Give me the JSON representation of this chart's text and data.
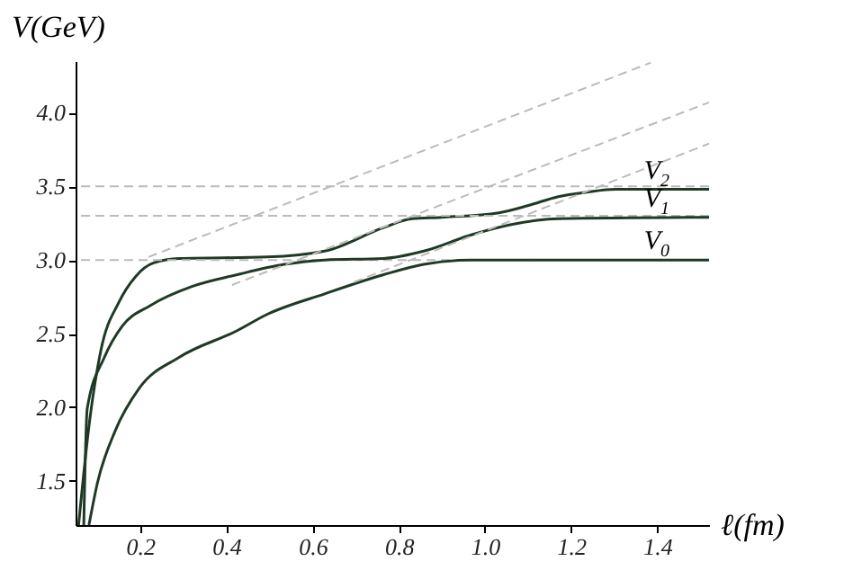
{
  "chart_data": {
    "type": "line",
    "xlabel": "ℓ(fm)",
    "ylabel": "V(GeV)",
    "xlim": [
      0.05,
      1.52
    ],
    "ylim": [
      1.2,
      4.35
    ],
    "xticks": [
      0.2,
      0.4,
      0.6,
      0.8,
      {
        "value": 1,
        "label": "1.0"
      },
      1.2,
      1.4
    ],
    "yticks": [
      1.5,
      {
        "value": 2,
        "label": "2.0"
      },
      2.5,
      {
        "value": 3,
        "label": "3.0"
      },
      3.5,
      {
        "value": 4,
        "label": "4.0"
      }
    ],
    "grid": false,
    "line_style": "solid",
    "series": [
      {
        "name": "V$_{2}$",
        "color": "#1f3a24",
        "x": [
          0.057,
          0.081,
          0.109,
          0.15,
          0.19,
          0.231,
          0.291,
          0.494,
          0.628,
          0.765,
          0.83,
          0.899,
          1.032,
          1.101,
          1.17,
          1.235,
          1.304,
          1.52
        ],
        "values": [
          1.2,
          1.87,
          2.39,
          2.71,
          2.89,
          2.98,
          3.01,
          3.02,
          3.06,
          3.22,
          3.28,
          3.29,
          3.32,
          3.37,
          3.43,
          3.46,
          3.48,
          3.48
        ]
      },
      {
        "name": "V$_{1}$",
        "color": "#1f3a24",
        "x": [
          0.069,
          0.077,
          0.117,
          0.158,
          0.223,
          0.32,
          0.425,
          0.534,
          0.628,
          0.765,
          0.858,
          0.968,
          1.061,
          1.17,
          1.52
        ],
        "values": [
          1.2,
          1.99,
          2.34,
          2.55,
          2.69,
          2.82,
          2.9,
          2.97,
          3.0,
          3.01,
          3.06,
          3.17,
          3.24,
          3.28,
          3.29
        ]
      },
      {
        "name": "V$_{0}$",
        "color": "#1f3a24",
        "x": [
          0.081,
          0.101,
          0.142,
          0.198,
          0.291,
          0.425,
          0.494,
          0.628,
          0.765,
          0.858,
          0.968,
          1.52
        ],
        "values": [
          1.2,
          1.49,
          1.84,
          2.13,
          2.34,
          2.52,
          2.63,
          2.77,
          2.9,
          2.97,
          3.0,
          3.0
        ]
      },
      {
        "color": "#bbbbbb",
        "line_style": "dashed",
        "x": [
          0.219,
          1.385
        ],
        "values": [
          3.02,
          4.34
        ]
      },
      {
        "color": "#bbbbbb",
        "line_style": "dashed",
        "x": [
          0.413,
          1.52
        ],
        "values": [
          2.83,
          4.07
        ]
      },
      {
        "color": "#bbbbbb",
        "line_style": "dashed",
        "x": [
          0.696,
          1.52
        ],
        "values": [
          2.85,
          3.79
        ]
      }
    ],
    "ref_lines": [
      {
        "axis": "y",
        "value": 3.0,
        "color": "#bbbbbb",
        "line_style": "dashed"
      },
      {
        "axis": "y",
        "value": 3.3,
        "color": "#bbbbbb",
        "line_style": "dashed"
      },
      {
        "axis": "y",
        "value": 3.5,
        "color": "#bbbbbb",
        "line_style": "dashed"
      }
    ]
  }
}
